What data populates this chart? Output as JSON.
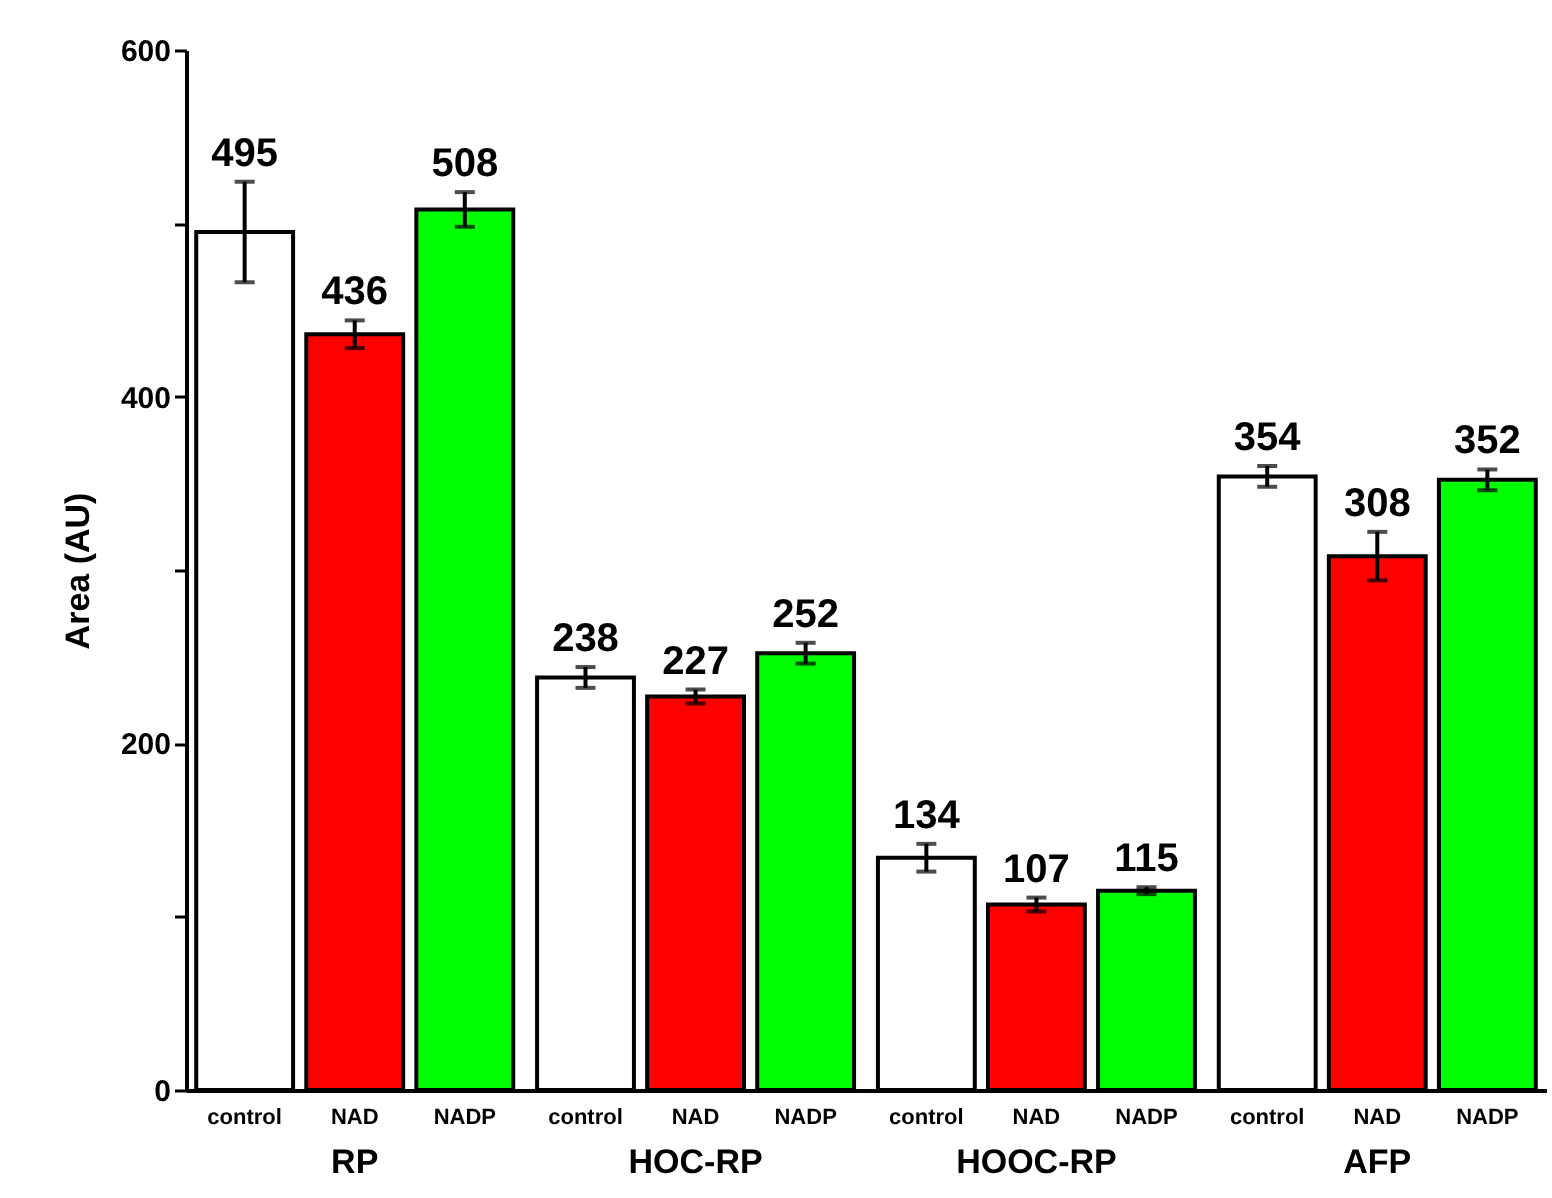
{
  "chart_data": {
    "type": "bar",
    "ylabel": "Area (AU)",
    "categories": [
      "RP",
      "HOC-RP",
      "HOOC-RP",
      "AFP"
    ],
    "series": [
      {
        "name": "control",
        "color": "#ffffff",
        "values": [
          495,
          238,
          134,
          354
        ],
        "errors": [
          29,
          6,
          8,
          6
        ]
      },
      {
        "name": "NAD",
        "color": "#ff0000",
        "values": [
          436,
          227,
          107,
          308
        ],
        "errors": [
          8,
          4,
          4,
          14
        ]
      },
      {
        "name": "NADP",
        "color": "#00ff00",
        "values": [
          508,
          252,
          115,
          352
        ],
        "errors": [
          10,
          6,
          2,
          6
        ]
      }
    ],
    "ylim": [
      0,
      600
    ],
    "yticks": [
      0,
      {
        "value": 100,
        "label": null
      },
      200,
      {
        "value": 300,
        "label": null
      },
      400,
      {
        "value": 500,
        "label": null
      },
      600
    ],
    "data_labels": true,
    "grid": false,
    "legend": false
  }
}
